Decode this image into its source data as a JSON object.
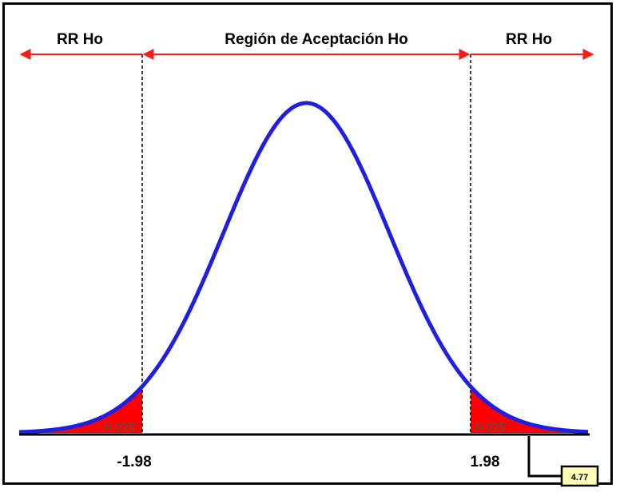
{
  "header": {
    "left_region": "RR Ho",
    "center_region": "Región de Aceptación Ho",
    "right_region": "RR Ho"
  },
  "critical_values": {
    "lower": "-1.98",
    "upper": "1.98"
  },
  "tail_areas": {
    "left": "0.025",
    "right": "0.025"
  },
  "test_statistic": "4.77",
  "colors": {
    "curve": "#1f1fe0",
    "tail_fill": "#ff0000",
    "arrow": "#ff1a1a",
    "stat_box": "#ffffb3"
  },
  "chart_data": {
    "type": "area",
    "distribution": "normal",
    "critical": [
      -1.98,
      1.98
    ],
    "tail_area": [
      0.025,
      0.025
    ],
    "statistic": 4.77
  }
}
